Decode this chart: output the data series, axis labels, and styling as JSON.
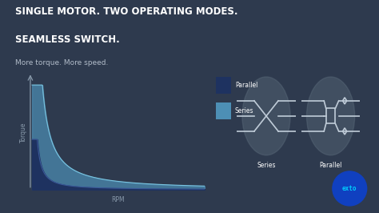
{
  "background_color": "#2e3a4e",
  "title_line1": "SINGLE MOTOR. TWO OPERATING MODES.",
  "title_line2": "SEAMLESS SWITCH.",
  "subtitle": "More torque. More speed.",
  "title_color": "#ffffff",
  "subtitle_color": "#b0bac8",
  "title_fontsize": 8.5,
  "subtitle_fontsize": 6.5,
  "xlabel": "RPM",
  "ylabel": "Torque",
  "axis_color": "#8899aa",
  "parallel_color": "#1e3260",
  "parallel_color2": "#2a4580",
  "series_color": "#4d8fb5",
  "series_color2": "#6aafd0",
  "legend_parallel_label": "Parallel",
  "legend_series_label": "Series",
  "series_label": "Series",
  "parallel_label": "Parallel",
  "circle_color": "#5a6a7a",
  "line_color": "#c0ccd8",
  "exfo_bg": "#1040c0",
  "exfo_text": "#00ccff"
}
